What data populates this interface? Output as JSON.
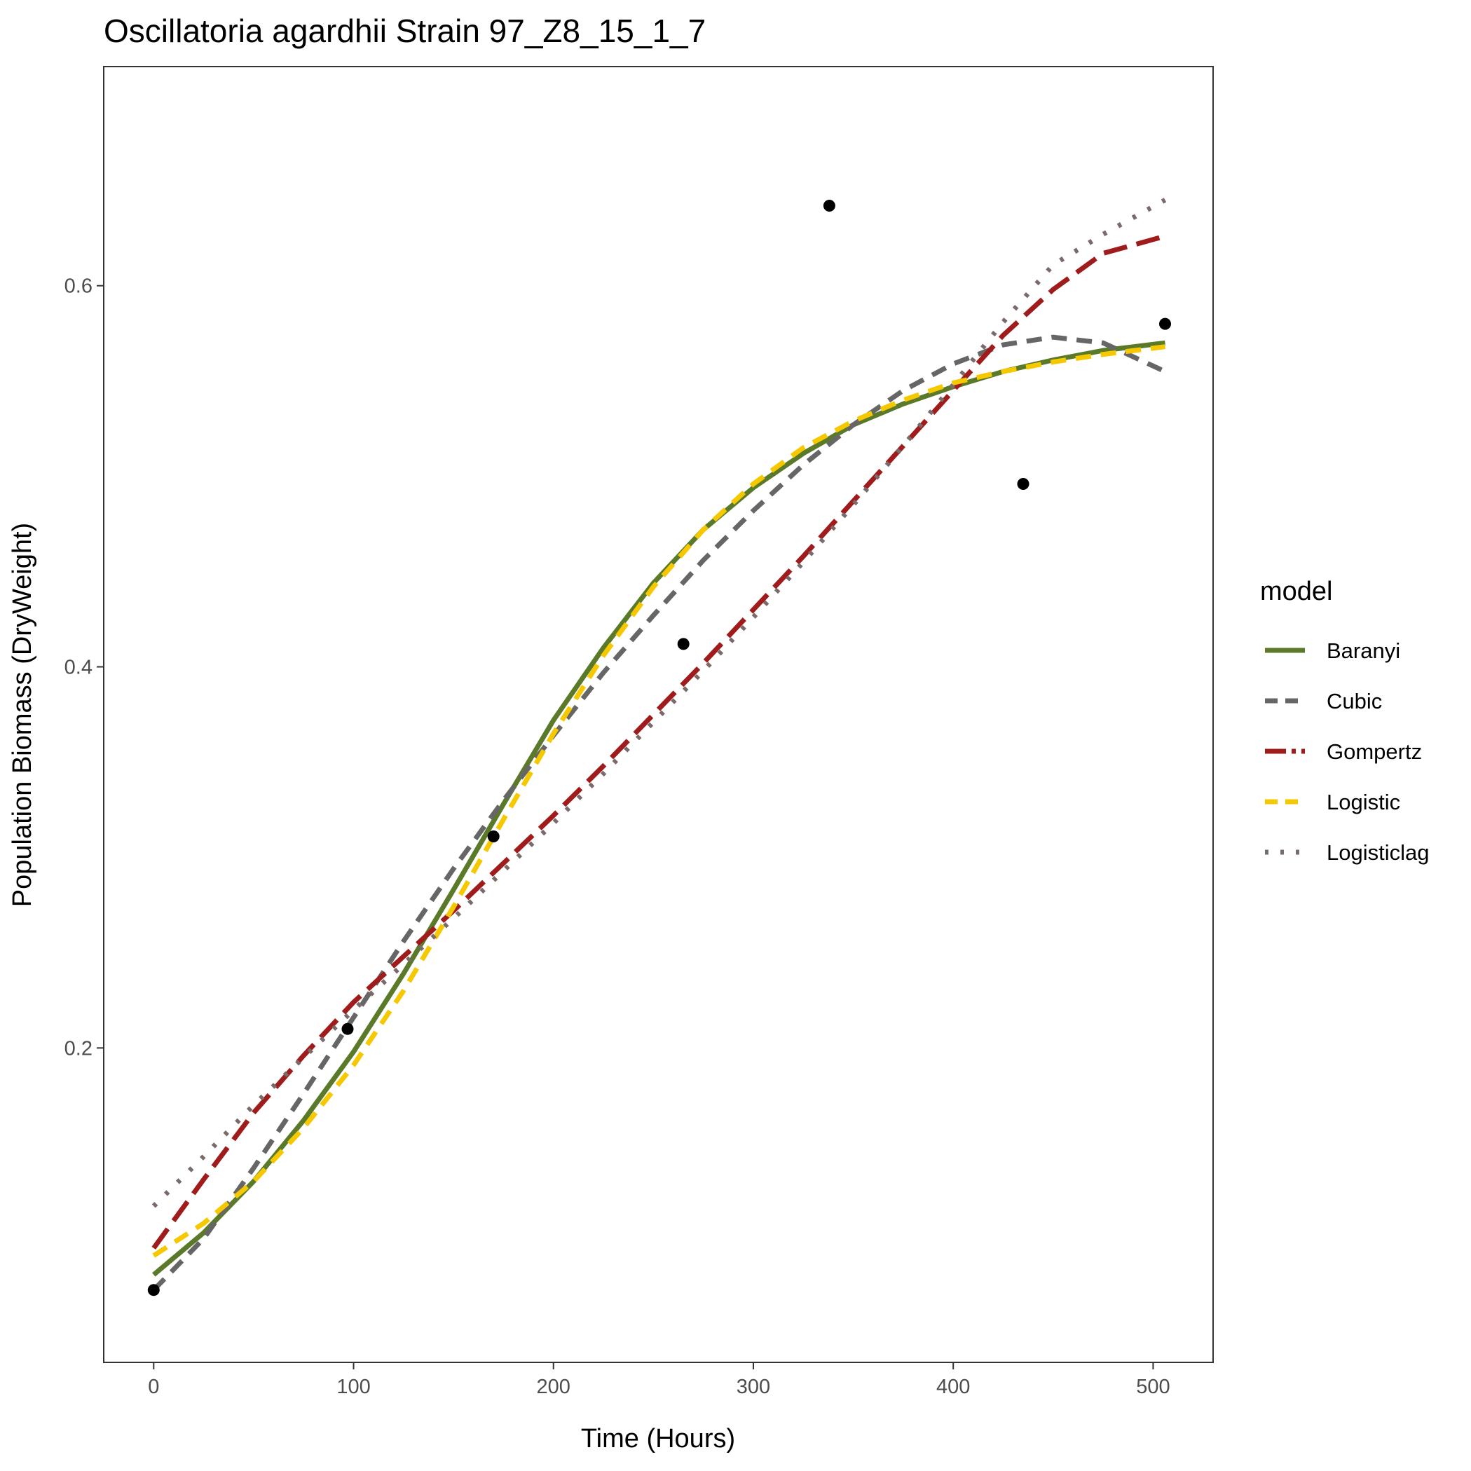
{
  "chart_data": {
    "type": "scatter",
    "title": "Oscillatoria agardhii Strain 97_Z8_15_1_7",
    "xlabel": "Time (Hours)",
    "ylabel": "Population Biomass (DryWeight)",
    "xlim": [
      -25,
      530
    ],
    "ylim": [
      0.035,
      0.715
    ],
    "xticks": [
      0,
      100,
      200,
      300,
      400,
      500
    ],
    "xtick_labels": [
      "0",
      "100",
      "200",
      "300",
      "400",
      "500"
    ],
    "yticks": [
      0.2,
      0.4,
      0.6
    ],
    "ytick_labels": [
      "0.2",
      "0.4",
      "0.6"
    ],
    "grid": false,
    "legend_position": "right",
    "legend_title": "model",
    "points": {
      "x": [
        0,
        97,
        170,
        265,
        338,
        435,
        506
      ],
      "y": [
        0.073,
        0.21,
        0.311,
        0.412,
        0.642,
        0.496,
        0.58
      ],
      "color": "#000000"
    },
    "series": [
      {
        "name": "Baranyi",
        "color": "#5a7a2a",
        "dash": "solid",
        "x": [
          0,
          25,
          50,
          75,
          100,
          125,
          150,
          175,
          200,
          225,
          250,
          275,
          300,
          325,
          350,
          375,
          400,
          425,
          450,
          475,
          506
        ],
        "y": [
          0.081,
          0.103,
          0.13,
          0.162,
          0.198,
          0.239,
          0.283,
          0.328,
          0.372,
          0.41,
          0.444,
          0.472,
          0.494,
          0.512,
          0.527,
          0.538,
          0.547,
          0.555,
          0.561,
          0.566,
          0.57
        ]
      },
      {
        "name": "Cubic",
        "color": "#666666",
        "dash": "dashed",
        "x": [
          0,
          25,
          50,
          75,
          100,
          125,
          150,
          175,
          200,
          225,
          250,
          275,
          300,
          325,
          350,
          375,
          400,
          425,
          450,
          475,
          506
        ],
        "y": [
          0.073,
          0.1,
          0.137,
          0.176,
          0.216,
          0.256,
          0.294,
          0.33,
          0.364,
          0.397,
          0.427,
          0.456,
          0.482,
          0.506,
          0.527,
          0.545,
          0.559,
          0.569,
          0.573,
          0.57,
          0.555
        ]
      },
      {
        "name": "Gompertz",
        "color": "#a01c1c",
        "dash": "longdash",
        "x": [
          0,
          25,
          50,
          75,
          100,
          125,
          150,
          175,
          200,
          225,
          250,
          275,
          300,
          325,
          350,
          375,
          400,
          425,
          450,
          475,
          506
        ],
        "y": [
          0.095,
          0.131,
          0.166,
          0.196,
          0.224,
          0.248,
          0.272,
          0.297,
          0.322,
          0.348,
          0.375,
          0.402,
          0.43,
          0.458,
          0.487,
          0.516,
          0.545,
          0.574,
          0.598,
          0.617,
          0.626
        ]
      },
      {
        "name": "Logistic",
        "color": "#f5c800",
        "dash": "dashed",
        "x": [
          0,
          25,
          50,
          75,
          100,
          125,
          150,
          175,
          200,
          225,
          250,
          275,
          300,
          325,
          350,
          375,
          400,
          425,
          450,
          475,
          506
        ],
        "y": [
          0.091,
          0.108,
          0.13,
          0.158,
          0.191,
          0.23,
          0.274,
          0.32,
          0.365,
          0.406,
          0.442,
          0.472,
          0.496,
          0.515,
          0.529,
          0.54,
          0.549,
          0.555,
          0.56,
          0.564,
          0.568
        ]
      },
      {
        "name": "Logisticlag",
        "color": "#7a6a6a",
        "dash": "dotted",
        "x": [
          0,
          25,
          50,
          75,
          100,
          125,
          150,
          175,
          200,
          225,
          250,
          275,
          300,
          325,
          350,
          375,
          400,
          425,
          450,
          475,
          506
        ],
        "y": [
          0.117,
          0.143,
          0.17,
          0.195,
          0.22,
          0.244,
          0.268,
          0.293,
          0.318,
          0.344,
          0.371,
          0.398,
          0.426,
          0.455,
          0.485,
          0.516,
          0.548,
          0.581,
          0.611,
          0.627,
          0.645
        ]
      }
    ]
  }
}
